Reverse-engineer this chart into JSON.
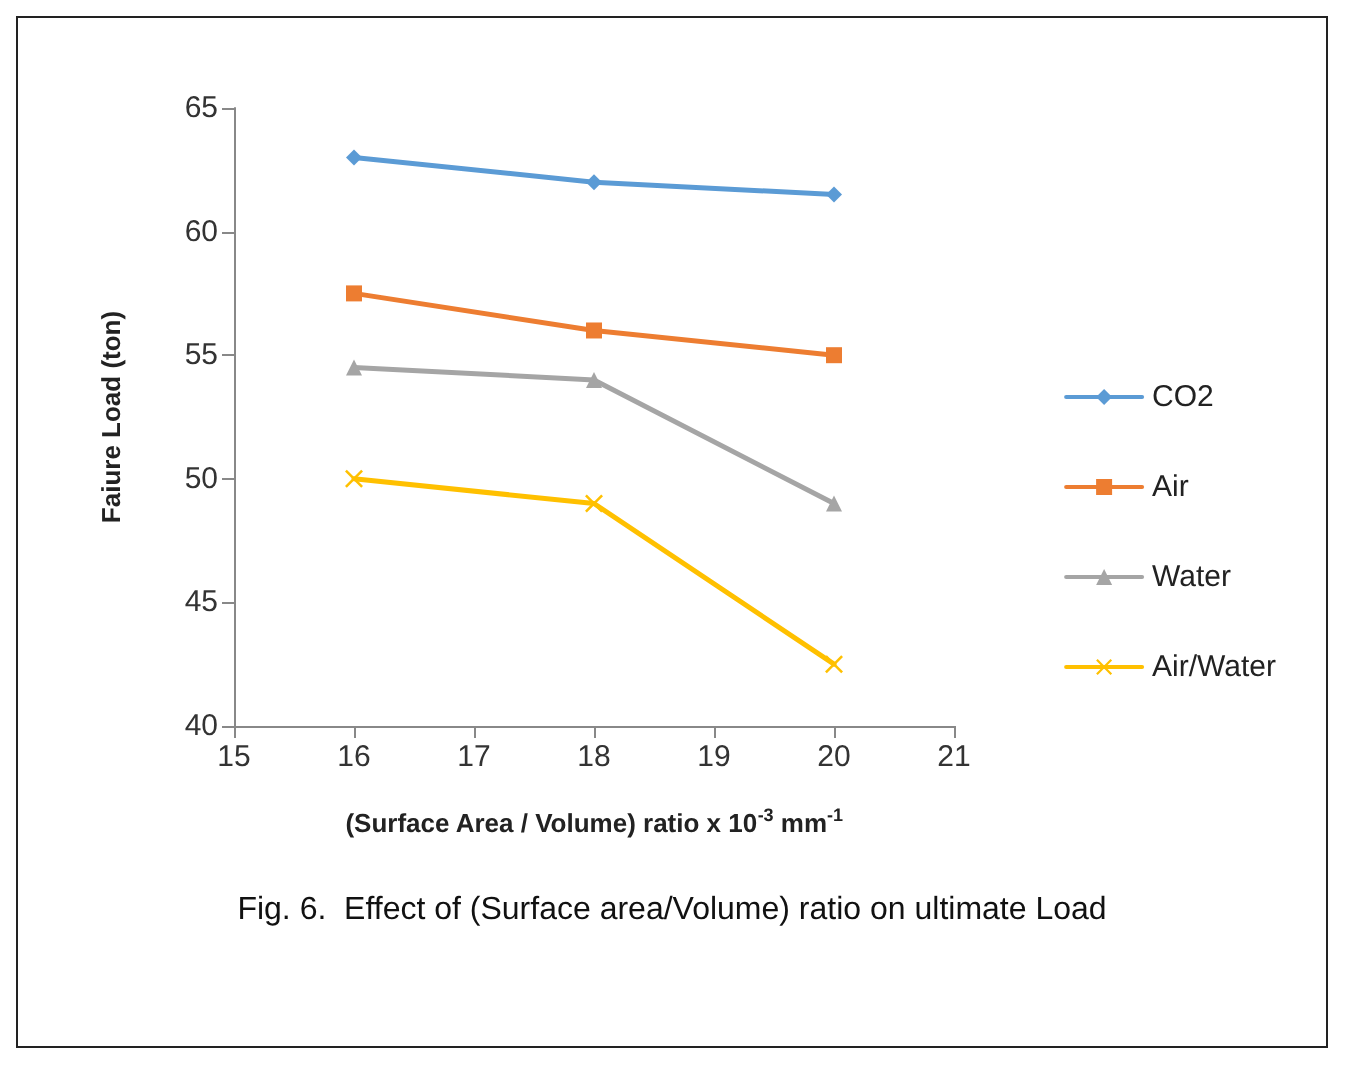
{
  "chart_data": {
    "type": "line",
    "ylabel": "Faiure Load (ton)",
    "xlabel": "(Surface Area / Volume) ratio x 10$^{-3}$ mm$^{-1}$",
    "annotations": [
      "Fig. 6.  Effect of (Surface area/Volume) ratio on ultimate Load"
    ],
    "x": [
      16,
      18,
      20
    ],
    "series": [
      {
        "name": "CO2",
        "color": "#5b9bd5",
        "marker": "diamond",
        "values": [
          63,
          62,
          61.5
        ]
      },
      {
        "name": "Air",
        "color": "#ed7d31",
        "marker": "square",
        "values": [
          57.5,
          56,
          55
        ]
      },
      {
        "name": "Water",
        "color": "#a5a5a5",
        "marker": "triangle",
        "values": [
          54.5,
          54,
          49
        ]
      },
      {
        "name": "Air/Water",
        "color": "#ffc000",
        "marker": "cross",
        "values": [
          50,
          49,
          42.5
        ]
      }
    ],
    "xlim": [
      15,
      21
    ],
    "xticks": [
      15,
      16,
      17,
      18,
      19,
      20,
      21
    ],
    "ylim": [
      40,
      65
    ],
    "yticks": [
      40,
      45,
      50,
      55,
      60,
      65
    ],
    "grid": false,
    "legend": "right",
    "line_style": "solid"
  }
}
